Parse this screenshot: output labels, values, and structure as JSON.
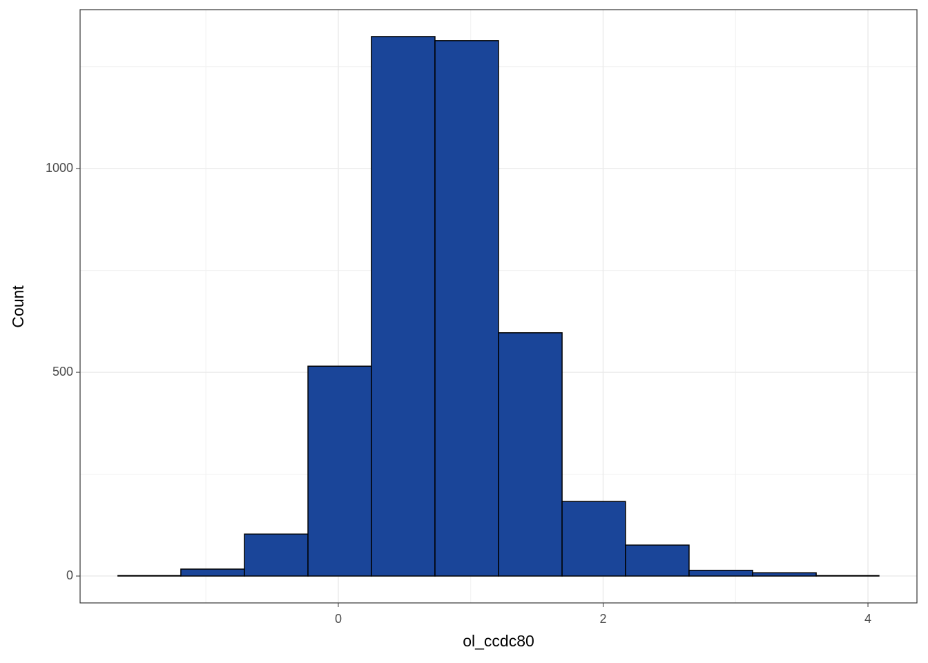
{
  "chart_data": {
    "type": "histogram",
    "x_label": "ol_ccdc80",
    "y_label": "Count",
    "bins": [
      -1.664,
      -1.189,
      -0.709,
      -0.229,
      0.25,
      0.73,
      1.21,
      1.69,
      2.169,
      2.649,
      3.129,
      3.609,
      4.083
    ],
    "values": [
      1,
      17,
      103,
      515,
      1324,
      1314,
      597,
      183,
      76,
      14,
      8,
      1
    ],
    "color": "#1a4599",
    "edge_color": "#000000",
    "xlim": [
      -1.95,
      4.37
    ],
    "xticks": [
      0,
      2,
      4
    ],
    "ylim": [
      -66,
      1390
    ],
    "yticks": [
      0,
      500,
      1000
    ],
    "grid": true,
    "minor_grid": true
  }
}
